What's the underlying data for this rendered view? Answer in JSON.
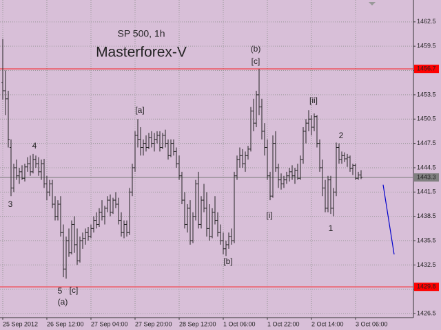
{
  "chart_data": {
    "type": "ohlc",
    "title": "SP 500, 1h",
    "subtitle": "Masterforex-V",
    "subtitle_color": "#ff0000",
    "bar_color": "#222222",
    "ohlc": [
      [
        1455,
        1460.4,
        1452.9,
        1454
      ],
      [
        1454,
        1456.5,
        1451,
        1453
      ],
      [
        1453,
        1454,
        1447,
        1448
      ],
      [
        1447,
        1448,
        1441,
        1442
      ],
      [
        1442,
        1445,
        1441.5,
        1444.5
      ],
      [
        1444.5,
        1445.5,
        1443,
        1443.5
      ],
      [
        1443.5,
        1444.5,
        1442.5,
        1444
      ],
      [
        1444,
        1444.8,
        1443,
        1443.2
      ],
      [
        1443.2,
        1445,
        1442.8,
        1444.6
      ],
      [
        1444.6,
        1445.8,
        1444,
        1445
      ],
      [
        1445,
        1446,
        1443.5,
        1444
      ],
      [
        1444,
        1446.2,
        1443.8,
        1445.5
      ],
      [
        1445.5,
        1446,
        1444.5,
        1445
      ],
      [
        1445,
        1445.8,
        1443.5,
        1444
      ],
      [
        1444,
        1445.5,
        1443,
        1445
      ],
      [
        1445,
        1445.6,
        1442,
        1442.5
      ],
      [
        1442.5,
        1443.5,
        1440.5,
        1441.5
      ],
      [
        1441.5,
        1443,
        1441,
        1442.5
      ],
      [
        1442.5,
        1443,
        1439.5,
        1440
      ],
      [
        1440,
        1441,
        1438,
        1438.5
      ],
      [
        1438.5,
        1440.5,
        1438,
        1440
      ],
      [
        1440,
        1441,
        1436,
        1436.5
      ],
      [
        1436.5,
        1437.5,
        1431,
        1432
      ],
      [
        1432,
        1436,
        1430.8,
        1435.5
      ],
      [
        1435.5,
        1437,
        1433.5,
        1434
      ],
      [
        1434,
        1438,
        1433.8,
        1437.5
      ],
      [
        1437.5,
        1438.5,
        1434,
        1435
      ],
      [
        1435,
        1437,
        1432.5,
        1433
      ],
      [
        1433,
        1436,
        1432.8,
        1435.5
      ],
      [
        1435.5,
        1436.5,
        1434.5,
        1435.8
      ],
      [
        1435.8,
        1437,
        1435,
        1436.5
      ],
      [
        1436.5,
        1437.2,
        1435.5,
        1436
      ],
      [
        1436,
        1437.5,
        1435.8,
        1437
      ],
      [
        1437,
        1438.5,
        1436.5,
        1438
      ],
      [
        1438,
        1439,
        1437,
        1437.5
      ],
      [
        1437.5,
        1439.5,
        1437.2,
        1439
      ],
      [
        1439,
        1440.5,
        1438,
        1438.5
      ],
      [
        1438.5,
        1439.8,
        1437.5,
        1439.5
      ],
      [
        1439.5,
        1441,
        1439,
        1440.5
      ],
      [
        1440.5,
        1441.2,
        1438.5,
        1439
      ],
      [
        1439,
        1440.8,
        1438.8,
        1440.5
      ],
      [
        1440.5,
        1441.5,
        1439.5,
        1440
      ],
      [
        1440,
        1440.8,
        1437.5,
        1438
      ],
      [
        1438,
        1439,
        1436,
        1436.5
      ],
      [
        1436.5,
        1438,
        1435.8,
        1437.5
      ],
      [
        1437.5,
        1438,
        1436,
        1436.5
      ],
      [
        1436.5,
        1442,
        1436.2,
        1441.5
      ],
      [
        1441.5,
        1445,
        1441,
        1444.5
      ],
      [
        1444.5,
        1449,
        1444,
        1448.5
      ],
      [
        1448.5,
        1450.5,
        1447,
        1448
      ],
      [
        1448,
        1449.5,
        1446,
        1447
      ],
      [
        1447,
        1448,
        1446,
        1447.5
      ],
      [
        1447.5,
        1448.5,
        1446.5,
        1447
      ],
      [
        1447,
        1448.8,
        1446.8,
        1448.2
      ],
      [
        1448.2,
        1449,
        1447,
        1447.5
      ],
      [
        1447.5,
        1448.8,
        1446.5,
        1448
      ],
      [
        1448,
        1449,
        1447.5,
        1448.5
      ],
      [
        1448.5,
        1449,
        1446.5,
        1447
      ],
      [
        1447,
        1448.8,
        1446.8,
        1448.5
      ],
      [
        1448.5,
        1449.2,
        1447,
        1447.5
      ],
      [
        1447.5,
        1448,
        1445.5,
        1446
      ],
      [
        1446,
        1448,
        1445.8,
        1447.5
      ],
      [
        1447.5,
        1448,
        1446,
        1446.5
      ],
      [
        1446.5,
        1447,
        1444.5,
        1445
      ],
      [
        1445,
        1446,
        1443,
        1443.5
      ],
      [
        1443.5,
        1444,
        1440,
        1440.5
      ],
      [
        1440.5,
        1441.5,
        1437,
        1437.5
      ],
      [
        1437.5,
        1440,
        1436.5,
        1439.5
      ],
      [
        1439.5,
        1440.5,
        1435,
        1435.5
      ],
      [
        1435.5,
        1439,
        1435.2,
        1438.5
      ],
      [
        1438.5,
        1443,
        1438,
        1442.5
      ],
      [
        1442.5,
        1444,
        1437,
        1437.5
      ],
      [
        1437.5,
        1441,
        1437,
        1440.5
      ],
      [
        1440.5,
        1442.5,
        1439,
        1439.5
      ],
      [
        1439.5,
        1441.5,
        1436,
        1437
      ],
      [
        1437,
        1440,
        1435.5,
        1436
      ],
      [
        1436,
        1439.5,
        1435.8,
        1439
      ],
      [
        1439,
        1441,
        1437.5,
        1438
      ],
      [
        1438,
        1439,
        1436,
        1436.5
      ],
      [
        1436.5,
        1437.5,
        1435,
        1435.5
      ],
      [
        1435.5,
        1436.5,
        1433.8,
        1434.5
      ],
      [
        1434.5,
        1435.5,
        1433.6,
        1435
      ],
      [
        1435,
        1436.5,
        1434.5,
        1436
      ],
      [
        1436,
        1437,
        1435,
        1435.5
      ],
      [
        1435.5,
        1444,
        1435.2,
        1443.5
      ],
      [
        1443.5,
        1446,
        1443,
        1445.5
      ],
      [
        1445.5,
        1447,
        1444.5,
        1446
      ],
      [
        1446,
        1446.8,
        1444.5,
        1445
      ],
      [
        1445,
        1446.5,
        1444,
        1446
      ],
      [
        1446,
        1447.2,
        1445.5,
        1446.8
      ],
      [
        1446.8,
        1452,
        1446.5,
        1451.5
      ],
      [
        1451.5,
        1453,
        1449,
        1450
      ],
      [
        1450,
        1454,
        1449.5,
        1453.5
      ],
      [
        1453.5,
        1456.7,
        1451,
        1452
      ],
      [
        1452,
        1453,
        1448,
        1449
      ],
      [
        1449,
        1450,
        1446,
        1447
      ],
      [
        1447,
        1448,
        1443,
        1443.5
      ],
      [
        1443.5,
        1444,
        1440.5,
        1441
      ],
      [
        1441,
        1448.5,
        1440.8,
        1447.5
      ],
      [
        1447.5,
        1449,
        1444,
        1444.5
      ],
      [
        1444.5,
        1445,
        1442,
        1443
      ],
      [
        1443,
        1443.8,
        1441.8,
        1442.5
      ],
      [
        1442.5,
        1443.5,
        1442,
        1443
      ],
      [
        1443,
        1444,
        1442.5,
        1443.5
      ],
      [
        1443.5,
        1444.5,
        1442.8,
        1444
      ],
      [
        1444,
        1444.8,
        1443,
        1443.5
      ],
      [
        1443.5,
        1444.5,
        1442.5,
        1444.2
      ],
      [
        1444.2,
        1445,
        1443,
        1443.2
      ],
      [
        1443.2,
        1446,
        1443,
        1445.5
      ],
      [
        1445.5,
        1449.5,
        1445,
        1449
      ],
      [
        1449,
        1450.5,
        1447.5,
        1450
      ],
      [
        1450,
        1451.6,
        1449,
        1450.5
      ],
      [
        1450.5,
        1451,
        1448.5,
        1449.5
      ],
      [
        1449.5,
        1451.2,
        1449,
        1450.8
      ],
      [
        1450.8,
        1451,
        1447,
        1447.5
      ],
      [
        1447.5,
        1448,
        1444,
        1444.5
      ],
      [
        1444.5,
        1445.5,
        1441,
        1442
      ],
      [
        1442,
        1443,
        1439,
        1439.5
      ],
      [
        1439.5,
        1443.5,
        1439,
        1443
      ],
      [
        1443,
        1443.5,
        1438.8,
        1439.5
      ],
      [
        1439.5,
        1442,
        1438.5,
        1441.5
      ],
      [
        1441.5,
        1447.6,
        1441,
        1447
      ],
      [
        1447,
        1447.5,
        1445,
        1445.5
      ],
      [
        1445.5,
        1446.5,
        1445,
        1446
      ],
      [
        1446,
        1446.4,
        1445.2,
        1445.6
      ],
      [
        1445.6,
        1446.2,
        1444.6,
        1445.8
      ],
      [
        1445.8,
        1446,
        1444,
        1444.4
      ],
      [
        1444.4,
        1445,
        1443.6,
        1444.8
      ],
      [
        1444.8,
        1445,
        1443,
        1443.2
      ],
      [
        1443.2,
        1444,
        1443,
        1443.6
      ],
      [
        1443.6,
        1444.2,
        1443.1,
        1443.3
      ]
    ],
    "xlim": [
      -1,
      149
    ],
    "xticks": [
      {
        "value": 0,
        "label": "25 Sep 2012"
      },
      {
        "value": 16,
        "label": "26 Sep 12:00"
      },
      {
        "value": 32,
        "label": "27 Sep 04:00"
      },
      {
        "value": 48,
        "label": "27 Sep 20:00"
      },
      {
        "value": 64,
        "label": "28 Sep 12:00"
      },
      {
        "value": 80,
        "label": "1 Oct 06:00"
      },
      {
        "value": 96,
        "label": "1 Oct 22:00"
      },
      {
        "value": 112,
        "label": "2 Oct 14:00"
      },
      {
        "value": 128,
        "label": "3 Oct 06:00"
      }
    ],
    "ylim": [
      1426.0,
      1465.2
    ],
    "yticks": [
      1462.5,
      1459.5,
      1456.5,
      1453.5,
      1450.5,
      1447.5,
      1444.5,
      1441.5,
      1438.5,
      1435.5,
      1432.5,
      1429.5,
      1426.5
    ],
    "grid": true,
    "levels": [
      {
        "value": 1456.7,
        "color": "#ff0000"
      },
      {
        "value": 1429.8,
        "color": "#ff0000"
      },
      {
        "value": 1443.3,
        "color": "#808080"
      }
    ],
    "projection": {
      "color": "#0000cc",
      "x": [
        138,
        142
      ],
      "y": [
        1442.4,
        1433.8
      ]
    },
    "annotations": [
      "(b)",
      "[c]",
      "[a]",
      "4",
      "3",
      "5",
      "[c]",
      "(a)",
      "[b]",
      "[i]",
      "[ii]",
      "2",
      "1"
    ]
  }
}
